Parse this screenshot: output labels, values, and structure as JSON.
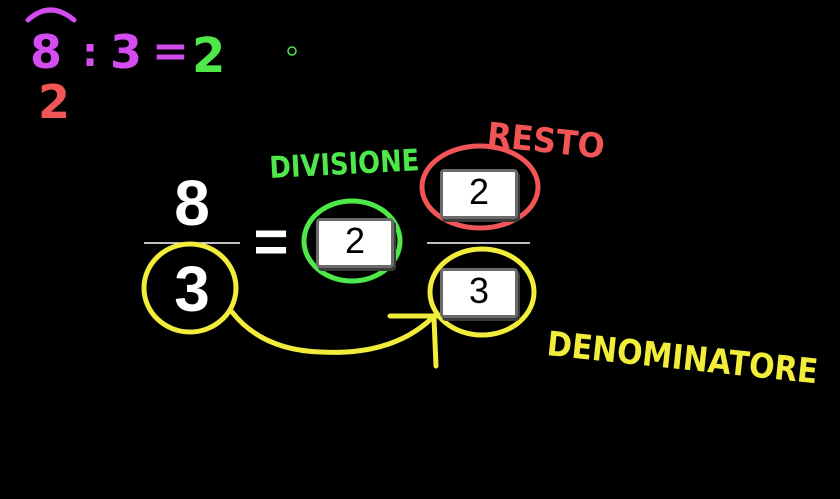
{
  "top_expression": {
    "dividend": "8",
    "operator": ":",
    "divisor": "3",
    "equals": "=",
    "result": "2",
    "remainder": "2"
  },
  "fraction": {
    "numerator": "8",
    "denominator": "3",
    "equals": "="
  },
  "mixed_number": {
    "whole_box": "2",
    "numerator_box": "2",
    "denominator_box": "3"
  },
  "annotations": {
    "divisione": "DIVISIONE",
    "resto": "RESTO",
    "denominatore": "DENOMINATORE"
  },
  "colors": {
    "background": "#000000",
    "purple": "#d24cf0",
    "green": "#4ee84a",
    "red": "#f25555",
    "yellow": "#f2ec3a",
    "white": "#ffffff"
  }
}
